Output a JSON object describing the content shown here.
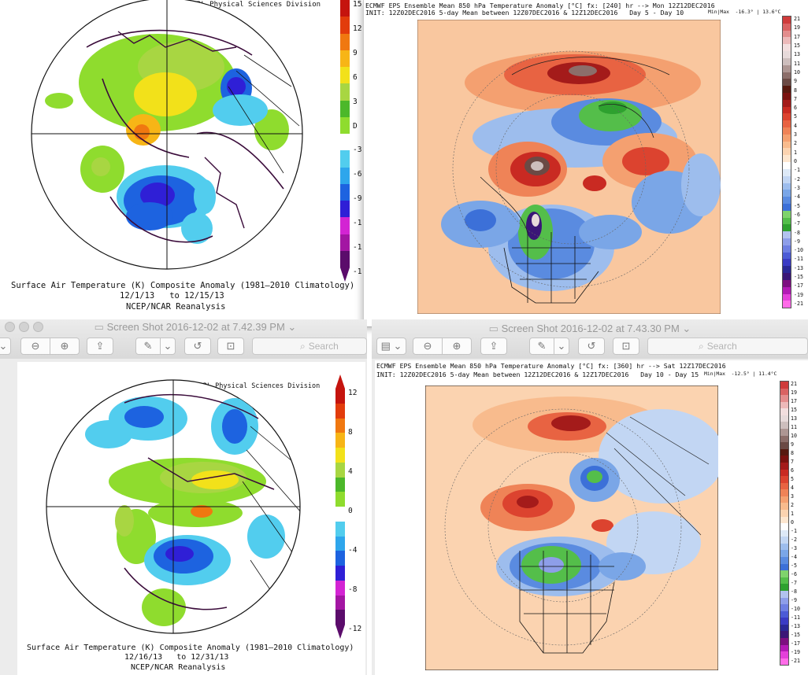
{
  "colors": {
    "ncep_scale": [
      "#5b0c6b",
      "#a316a3",
      "#d324d3",
      "#2f1fd6",
      "#1d63e0",
      "#2ea6ec",
      "#52cdee",
      "#ffffff",
      "#8fdc2e",
      "#4cb82a",
      "#a8d642",
      "#f2e11a",
      "#f7b516",
      "#f07810",
      "#e23c0c",
      "#c5140e"
    ],
    "ecmwf_scale": [
      "#ff6be8",
      "#e43fda",
      "#b319b5",
      "#7d0e80",
      "#3a1677",
      "#2a2896",
      "#3a3bc4",
      "#4c5bd6",
      "#6e7fe2",
      "#8e9ee9",
      "#b2c3ef",
      "#2ea12f",
      "#54be4a",
      "#7fd36c",
      "#3c70d8",
      "#5a8be0",
      "#7aa6e7",
      "#9dbded",
      "#c2d6f3",
      "#dde9f7",
      "#ffffff",
      "#fde6cf",
      "#fbd3b0",
      "#f8bb8d",
      "#f4a070",
      "#ef8357",
      "#e86342",
      "#dc432f",
      "#c92a22",
      "#a41b1a",
      "#7a120f",
      "#57190f",
      "#6b4a45",
      "#8c6e6a",
      "#ad9693",
      "#cdbebd",
      "#e7dada",
      "#f2dede",
      "#ecb9b9",
      "#e38d8d",
      "#d96262",
      "#cf3b3b"
    ]
  },
  "panels": {
    "top_left": {
      "header": "NOAA/ESRL Physical Sciences Division",
      "caption_line1": "Surface Air Temperature (K) Composite Anomaly (1981–2010 Climatology)",
      "caption_line2": "12/1/13   to 12/15/13",
      "caption_line3": "NCEP/NCAR Reanalysis",
      "colorbar_labels": [
        "15",
        "12",
        "9",
        "6",
        "3",
        "D",
        "-3",
        "-6",
        "-9",
        "-1",
        "-1",
        "-1"
      ]
    },
    "top_right": {
      "header_line1": "ECMWF EPS Ensemble Mean 850 hPa Temperature Anomaly [°C] fx: [240] hr --> Mon 12Z12DEC2016",
      "header_line2": "INIT: 12Z02DEC2016 5-day Mean between 12Z07DEC2016 & 12Z12DEC2016   Day 5 - Day 10",
      "minmax": "Min|Max  -16.3° | 13.6°C",
      "colorbar_labels": [
        "21",
        "19",
        "17",
        "15",
        "13",
        "11",
        "10",
        "9",
        "8",
        "7",
        "6",
        "5",
        "4",
        "3",
        "2",
        "1",
        "0",
        "-1",
        "-2",
        "-3",
        "-4",
        "-5",
        "-6",
        "-7",
        "-8",
        "-9",
        "-10",
        "-11",
        "-13",
        "-15",
        "-17",
        "-19",
        "-21"
      ]
    },
    "bottom_left": {
      "window_title": "Screen Shot 2016-12-02 at 7.42.39 PM",
      "search_placeholder": "Search",
      "header": "NOAA/ESRL Physical Sciences Division",
      "caption_line1": "Surface Air Temperature (K) Composite Anomaly (1981–2010 Climatology)",
      "caption_line2": "12/16/13   to 12/31/13",
      "caption_line3": "NCEP/NCAR Reanalysis",
      "colorbar_labels": [
        "12",
        "8",
        "4",
        "0",
        "-4",
        "-8",
        "-12"
      ]
    },
    "bottom_right": {
      "window_title": "Screen Shot 2016-12-02 at 7.43.30 PM",
      "search_placeholder": "Search",
      "header_line1": "ECMWF EPS Ensemble Mean 850 hPa Temperature Anomaly [°C] fx: [360] hr --> Sat 12Z17DEC2016",
      "header_line2": "INIT: 12Z02DEC2016 5-day Mean between 12Z12DEC2016 & 12Z17DEC2016   Day 10 - Day 15",
      "minmax": "Min|Max  -12.5° | 11.4°C",
      "colorbar_labels": [
        "21",
        "19",
        "17",
        "15",
        "13",
        "11",
        "10",
        "9",
        "8",
        "7",
        "6",
        "5",
        "4",
        "3",
        "2",
        "1",
        "0",
        "-1",
        "-2",
        "-3",
        "-4",
        "-5",
        "-6",
        "-7",
        "-8",
        "-9",
        "-10",
        "-11",
        "-13",
        "-15",
        "-17",
        "-19",
        "-21"
      ]
    }
  }
}
